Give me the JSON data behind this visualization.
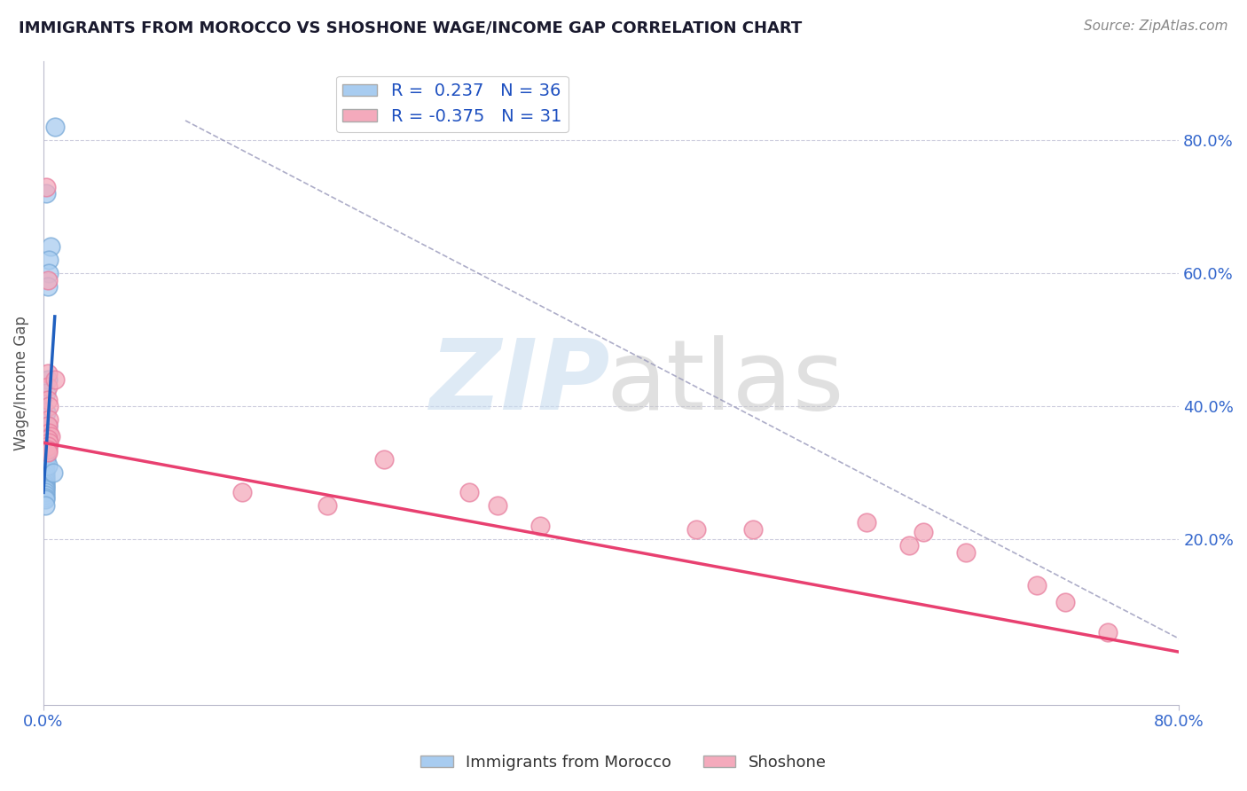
{
  "title": "IMMIGRANTS FROM MOROCCO VS SHOSHONE WAGE/INCOME GAP CORRELATION CHART",
  "source": "Source: ZipAtlas.com",
  "ylabel": "Wage/Income Gap",
  "xlim": [
    0.0,
    0.8
  ],
  "ylim": [
    -0.05,
    0.92
  ],
  "blue_R": 0.237,
  "blue_N": 36,
  "pink_R": -0.375,
  "pink_N": 31,
  "blue_color": "#A8CCF0",
  "pink_color": "#F4AABC",
  "blue_edge_color": "#7AAAD8",
  "pink_edge_color": "#E880A0",
  "blue_line_color": "#2060C0",
  "pink_line_color": "#E84070",
  "legend_blue_label": "Immigrants from Morocco",
  "legend_pink_label": "Shoshone",
  "blue_points_x": [
    0.008,
    0.002,
    0.005,
    0.004,
    0.004,
    0.003,
    0.003,
    0.002,
    0.002,
    0.003,
    0.003,
    0.002,
    0.002,
    0.003,
    0.002,
    0.001,
    0.001,
    0.002,
    0.001,
    0.001,
    0.001,
    0.001,
    0.001,
    0.001,
    0.001,
    0.001,
    0.001,
    0.001,
    0.001,
    0.001,
    0.001,
    0.001,
    0.001,
    0.003,
    0.001,
    0.007
  ],
  "blue_points_y": [
    0.82,
    0.72,
    0.64,
    0.62,
    0.6,
    0.58,
    0.44,
    0.42,
    0.39,
    0.37,
    0.355,
    0.35,
    0.345,
    0.34,
    0.335,
    0.33,
    0.325,
    0.32,
    0.315,
    0.31,
    0.305,
    0.3,
    0.295,
    0.29,
    0.286,
    0.283,
    0.28,
    0.277,
    0.274,
    0.27,
    0.266,
    0.263,
    0.26,
    0.31,
    0.25,
    0.3
  ],
  "pink_points_x": [
    0.002,
    0.003,
    0.003,
    0.003,
    0.003,
    0.004,
    0.004,
    0.003,
    0.004,
    0.005,
    0.003,
    0.004,
    0.003,
    0.003,
    0.003,
    0.008,
    0.14,
    0.2,
    0.24,
    0.3,
    0.32,
    0.35,
    0.46,
    0.5,
    0.58,
    0.61,
    0.62,
    0.65,
    0.7,
    0.72,
    0.75
  ],
  "pink_points_y": [
    0.73,
    0.59,
    0.45,
    0.43,
    0.41,
    0.4,
    0.38,
    0.37,
    0.36,
    0.355,
    0.35,
    0.345,
    0.34,
    0.335,
    0.33,
    0.44,
    0.27,
    0.25,
    0.32,
    0.27,
    0.25,
    0.22,
    0.215,
    0.215,
    0.225,
    0.19,
    0.21,
    0.18,
    0.13,
    0.105,
    0.06
  ],
  "blue_line_x": [
    0.0,
    0.008
  ],
  "blue_line_y": [
    0.27,
    0.535
  ],
  "pink_line_x": [
    0.0,
    0.8
  ],
  "pink_line_y": [
    0.345,
    0.03
  ],
  "diag_line_x": [
    0.1,
    0.8
  ],
  "diag_line_y": [
    0.83,
    0.05
  ]
}
